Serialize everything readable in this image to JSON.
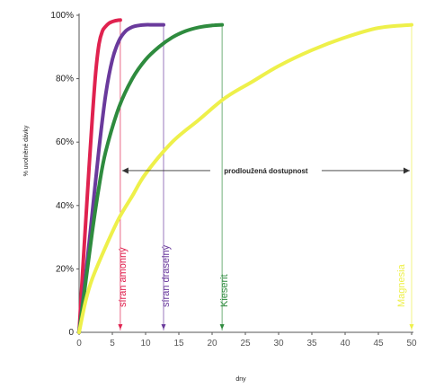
{
  "chart_data": {
    "type": "line",
    "xlabel": "dny",
    "ylabel": "% uvolněné dávky",
    "xlim": [
      0,
      50
    ],
    "ylim": [
      0,
      100
    ],
    "x_ticks": [
      "0",
      "5",
      "10",
      "15",
      "20",
      "25",
      "30",
      "35",
      "40",
      "45",
      "50"
    ],
    "y_ticks": [
      "0",
      "20%",
      "40%",
      "60%",
      "80%",
      "100%"
    ],
    "grid": false,
    "series": [
      {
        "name": "síran amonný",
        "color": "#e0224f",
        "x": [
          0,
          0.5,
          1,
          1.5,
          2,
          2.5,
          3,
          3.5,
          4,
          4.5,
          5,
          5.5,
          6.2
        ],
        "values": [
          0,
          18,
          35,
          52,
          68,
          82,
          91,
          95,
          96.5,
          97.5,
          98,
          98.3,
          98.5
        ],
        "marker_x": 6.2
      },
      {
        "name": "síran draselný",
        "color": "#6a3a9c",
        "x": [
          0,
          1,
          2,
          3,
          4,
          5,
          6,
          7,
          8,
          9,
          10,
          11,
          12,
          12.7
        ],
        "values": [
          0,
          18,
          38,
          58,
          75,
          86,
          92,
          95,
          96.3,
          96.8,
          97,
          97,
          97,
          97
        ],
        "marker_x": 12.7
      },
      {
        "name": "Kieserit",
        "color": "#2e8b3e",
        "x": [
          0,
          1,
          2,
          3,
          4,
          6,
          8,
          10,
          12,
          14,
          16,
          18,
          20,
          21.5
        ],
        "values": [
          0,
          16,
          32,
          46,
          57,
          71,
          80,
          86,
          90,
          93,
          95,
          96.2,
          96.8,
          97
        ],
        "marker_x": 21.5
      },
      {
        "name": "Magnesia",
        "color": "#eef04a",
        "x": [
          0,
          1,
          2,
          4,
          6,
          8,
          10,
          14,
          18,
          22,
          26,
          30,
          35,
          40,
          45,
          50
        ],
        "values": [
          0,
          10,
          17,
          27,
          36,
          43,
          50,
          60,
          67,
          74,
          79,
          84,
          89,
          93,
          96,
          97
        ],
        "marker_x": 50
      }
    ],
    "annotation": {
      "text": "prodloužená dostupnost",
      "from_x": 6.2,
      "to_x": 50,
      "y": 51
    }
  }
}
